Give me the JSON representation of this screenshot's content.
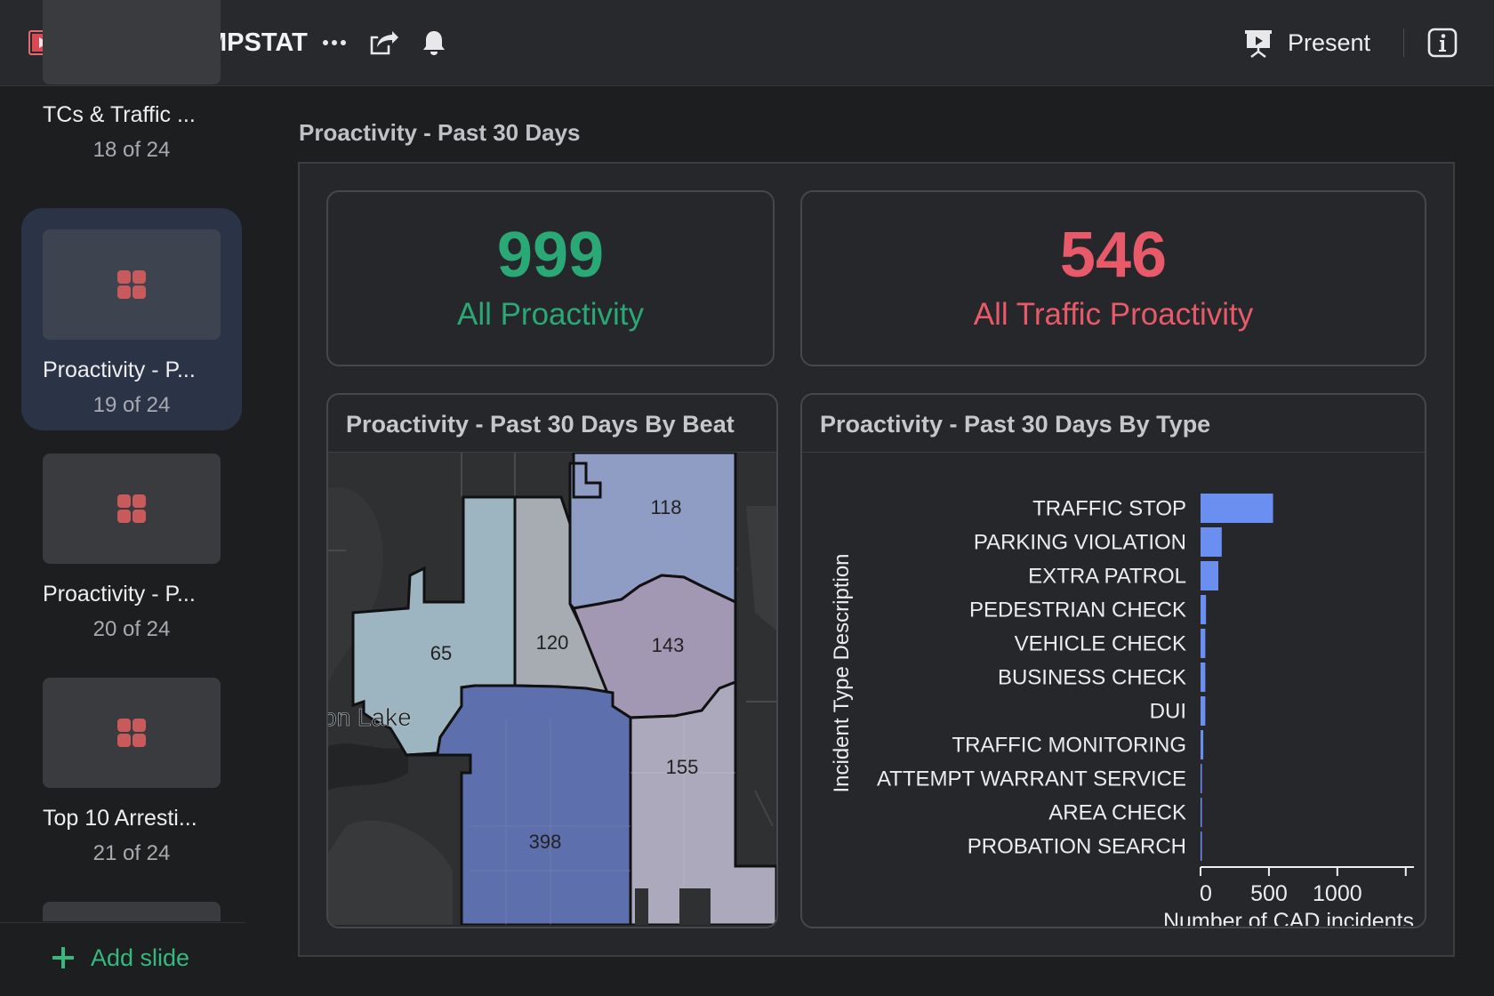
{
  "header": {
    "title": "Weekly COMPSTAT",
    "present_label": "Present",
    "icons": [
      "slideshow-logo-icon",
      "more-icon",
      "share-icon",
      "bell-icon",
      "present-icon",
      "info-icon"
    ]
  },
  "sidebar": {
    "slides": [
      {
        "name": "TCs & Traffic ...",
        "count": "18 of 24"
      },
      {
        "name": "Proactivity - P...",
        "count": "19 of 24",
        "active": true
      },
      {
        "name": "Proactivity - P...",
        "count": "20 of 24"
      },
      {
        "name": "Top 10 Arresti...",
        "count": "21 of 24"
      }
    ],
    "add_slide_label": "Add slide"
  },
  "page": {
    "title": "Proactivity - Past 30 Days"
  },
  "kpis": [
    {
      "value": "999",
      "label": "All Proactivity",
      "color": "#2aa876"
    },
    {
      "value": "546",
      "label": "All Traffic Proactivity",
      "color": "#e85a6a"
    }
  ],
  "map": {
    "title": "Proactivity - Past 30 Days By Beat",
    "place_label": "on Lake",
    "beats": [
      {
        "beat": "118",
        "color": "#8f9cc4"
      },
      {
        "beat": "65",
        "color": "#9db5c0"
      },
      {
        "beat": "120",
        "color": "#a7abb2"
      },
      {
        "beat": "143",
        "color": "#a398b4"
      },
      {
        "beat": "155",
        "color": "#aca9bc"
      },
      {
        "beat": "398",
        "color": "#5d6fac"
      }
    ]
  },
  "chart_data": {
    "type": "bar",
    "orientation": "horizontal",
    "title": "Proactivity - Past 30 Days By Type",
    "categories": [
      "TRAFFIC STOP",
      "PARKING VIOLATION",
      "EXTRA PATROL",
      "PEDESTRIAN CHECK",
      "VEHICLE CHECK",
      "BUSINESS CHECK",
      "DUI",
      "TRAFFIC MONITORING",
      "ATTEMPT WARRANT SERVICE",
      "AREA CHECK",
      "PROBATION SEARCH"
    ],
    "values": [
      530,
      155,
      130,
      40,
      35,
      35,
      35,
      20,
      10,
      5,
      3
    ],
    "xlabel": "Number of CAD incidents",
    "ylabel": "Incident Type Description",
    "xticks": [
      "0",
      "500",
      "1000"
    ],
    "xlim": [
      0,
      1560
    ],
    "bar_color": "#6a8ff0"
  }
}
